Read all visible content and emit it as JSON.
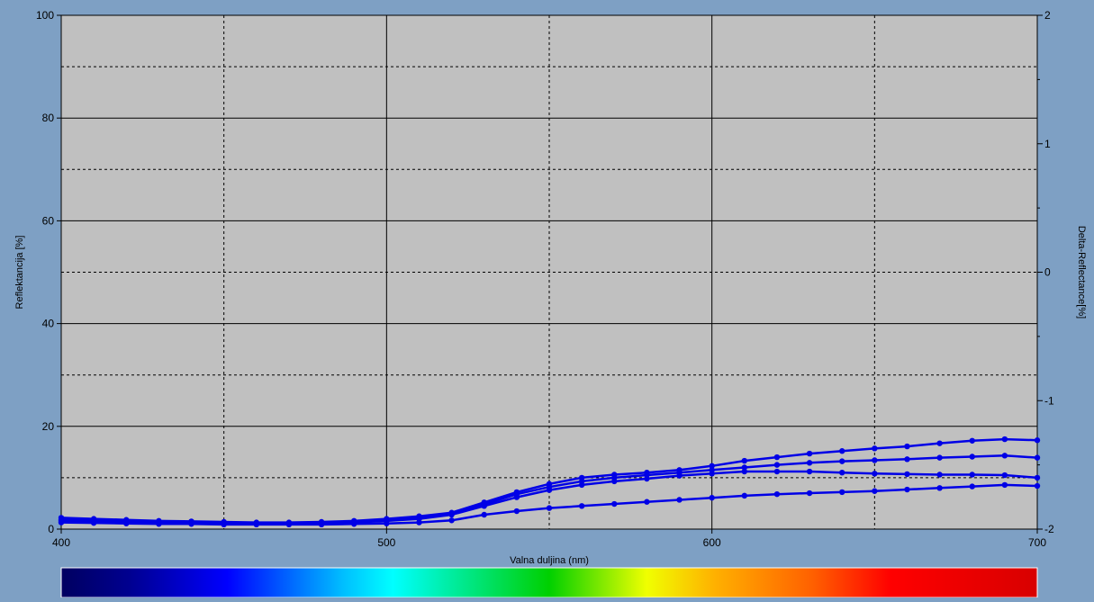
{
  "colors": {
    "background": "#7ea0c4",
    "plot_area": "#c0c0c0",
    "series_line": "#0000e6",
    "grid": "#000000"
  },
  "chart_data": {
    "type": "line",
    "xlabel": "Valna duljina (nm)",
    "ylabel": "Reflektancija [%]",
    "y2label": "Delta-Reflectance[%]",
    "xlim": [
      400,
      700
    ],
    "ylim": [
      0,
      100
    ],
    "y2lim": [
      -2,
      2
    ],
    "x_major_ticks": [
      400,
      500,
      600,
      700
    ],
    "y_major_ticks": [
      0,
      20,
      40,
      60,
      80,
      100
    ],
    "y2_major_ticks": [
      -2,
      -1,
      0,
      1,
      2
    ],
    "grid": "major solid, minor dashed",
    "color_bar": "visible spectrum 400-700 nm",
    "x": [
      400,
      410,
      420,
      430,
      440,
      450,
      460,
      470,
      480,
      490,
      500,
      510,
      520,
      530,
      540,
      550,
      560,
      570,
      580,
      590,
      600,
      610,
      620,
      630,
      640,
      650,
      660,
      670,
      680,
      690,
      700
    ],
    "series": [
      {
        "values": [
          2.2,
          2.0,
          1.8,
          1.6,
          1.5,
          1.4,
          1.3,
          1.3,
          1.4,
          1.6,
          2.0,
          2.5,
          3.2,
          5.2,
          7.2,
          8.8,
          10.0,
          10.6,
          11.0,
          11.5,
          12.3,
          13.3,
          14.0,
          14.7,
          15.2,
          15.7,
          16.1,
          16.7,
          17.2,
          17.5,
          17.3
        ]
      },
      {
        "values": [
          1.8,
          1.7,
          1.5,
          1.4,
          1.3,
          1.2,
          1.2,
          1.2,
          1.3,
          1.5,
          1.8,
          2.2,
          3.0,
          4.8,
          6.8,
          8.2,
          9.3,
          10.0,
          10.5,
          11.0,
          11.5,
          12.0,
          12.5,
          12.9,
          13.2,
          13.4,
          13.6,
          13.9,
          14.1,
          14.3,
          13.9
        ]
      },
      {
        "values": [
          1.6,
          1.5,
          1.3,
          1.2,
          1.2,
          1.1,
          1.1,
          1.1,
          1.2,
          1.3,
          1.6,
          2.0,
          2.8,
          4.5,
          6.2,
          7.6,
          8.6,
          9.3,
          9.8,
          10.4,
          10.8,
          11.2,
          11.2,
          11.2,
          11.0,
          10.8,
          10.7,
          10.6,
          10.6,
          10.5,
          10.0
        ]
      },
      {
        "values": [
          1.3,
          1.2,
          1.1,
          1.0,
          1.0,
          0.9,
          0.9,
          0.9,
          0.9,
          1.0,
          1.1,
          1.3,
          1.7,
          2.8,
          3.5,
          4.1,
          4.5,
          4.9,
          5.3,
          5.7,
          6.1,
          6.5,
          6.8,
          7.0,
          7.2,
          7.4,
          7.7,
          8.0,
          8.3,
          8.6,
          8.4
        ]
      }
    ]
  }
}
